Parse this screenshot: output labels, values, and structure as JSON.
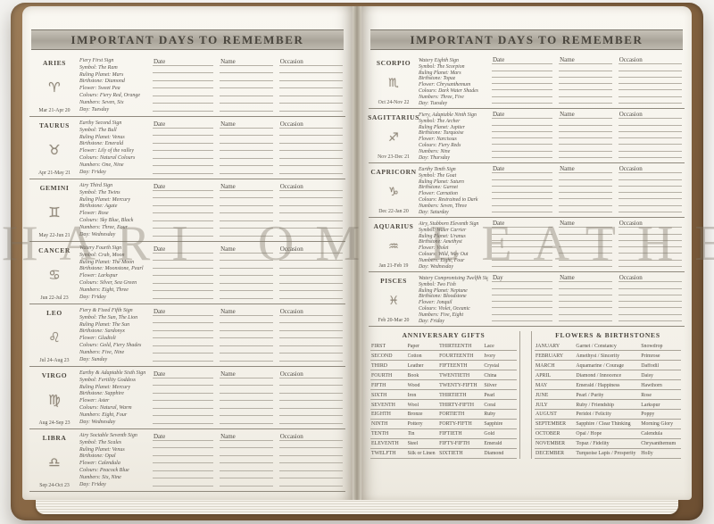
{
  "page_title": "IMPORTANT DAYS TO REMEMBER",
  "watermark": "HARI OM LEATHER",
  "columns": {
    "date": "Date",
    "name": "Name",
    "occasion": "Occasion"
  },
  "left_page": {
    "signs": [
      {
        "name": "ARIES",
        "icon": "♈",
        "dates": "Mar 21-Apr 20",
        "info": [
          "Fiery First Sign",
          "Symbol: The Ram",
          "Ruling Planet: Mars",
          "Birthstone: Diamond",
          "Flower: Sweet Pea",
          "Colours: Fiery Red, Orange",
          "Numbers: Seven, Six",
          "Day: Tuesday"
        ]
      },
      {
        "name": "TAURUS",
        "icon": "♉",
        "dates": "Apr 21-May 21",
        "info": [
          "Earthy Second Sign",
          "Symbol: The Bull",
          "Ruling Planet: Venus",
          "Birthstone: Emerald",
          "Flower: Lily of the valley",
          "Colours: Natural Colours",
          "Numbers: One, Nine",
          "Day: Friday"
        ]
      },
      {
        "name": "GEMINI",
        "icon": "♊",
        "dates": "May 22-Jun 21",
        "info": [
          "Airy Third Sign",
          "Symbol: The Twins",
          "Ruling Planet: Mercury",
          "Birthstone: Agate",
          "Flower: Rose",
          "Colours: Sky Blue, Black",
          "Numbers: Three, Four",
          "Day: Wednesday"
        ]
      },
      {
        "name": "CANCER",
        "icon": "♋",
        "dates": "Jun 22-Jul 23",
        "info": [
          "Watery Fourth Sign",
          "Symbol: Crab, Moon",
          "Ruling Planet: The Moon",
          "Birthstone: Moonstone, Pearl",
          "Flower: Larkspur",
          "Colours: Silver, Sea Green",
          "Numbers: Eight, Three",
          "Day: Friday"
        ]
      },
      {
        "name": "LEO",
        "icon": "♌",
        "dates": "Jul 24-Aug 23",
        "info": [
          "Fiery & Fixed Fifth Sign",
          "Symbol: The Sun, The Lion",
          "Ruling Planet: The Sun",
          "Birthstone: Sardonyx",
          "Flower: Gladioli",
          "Colours: Gold, Fiery Shades",
          "Numbers: Five, Nine",
          "Day: Sunday"
        ]
      },
      {
        "name": "VIRGO",
        "icon": "♍",
        "dates": "Aug 24-Sep 23",
        "info": [
          "Earthy & Adaptable Sixth Sign",
          "Symbol: Fertility Goddess",
          "Ruling Planet: Mercury",
          "Birthstone: Sapphire",
          "Flower: Aster",
          "Colours: Natural, Warm",
          "Numbers: Eight, Four",
          "Day: Wednesday"
        ]
      },
      {
        "name": "LIBRA",
        "icon": "♎",
        "dates": "Sep 24-Oct 23",
        "info": [
          "Airy Sociable Seventh Sign",
          "Symbol: The Scales",
          "Ruling Planet: Venus",
          "Birthstone: Opal",
          "Flower: Calendula",
          "Colours: Peacock Blue",
          "Numbers: Six, Nine",
          "Day: Friday"
        ]
      }
    ]
  },
  "right_page": {
    "signs": [
      {
        "name": "SCORPIO",
        "icon": "♏",
        "dates": "Oct 24-Nov 22",
        "info": [
          "Watery Eighth Sign",
          "Symbol: The Scorpion",
          "Ruling Planet: Mars",
          "Birthstone: Topaz",
          "Flower: Chrysanthemum",
          "Colours: Dark Water Shades",
          "Numbers: Three, Five",
          "Day: Tuesday"
        ]
      },
      {
        "name": "SAGITTARIUS",
        "icon": "♐",
        "dates": "Nov 23-Dec 21",
        "info": [
          "Fiery, Adaptable Ninth Sign",
          "Symbol: The Archer",
          "Ruling Planet: Jupiter",
          "Birthstone: Turquoise",
          "Flower: Narcissus",
          "Colours: Fiery Reds",
          "Numbers: Nine",
          "Day: Thursday"
        ]
      },
      {
        "name": "CAPRICORN",
        "icon": "♑",
        "dates": "Dec 22-Jan 20",
        "info": [
          "Earthy Tenth Sign",
          "Symbol: The Goat",
          "Ruling Planet: Saturn",
          "Birthstone: Garnet",
          "Flower: Carnation",
          "Colours: Restrained to Dark",
          "Numbers: Seven, Three",
          "Day: Saturday"
        ]
      },
      {
        "name": "AQUARIUS",
        "icon": "♒",
        "dates": "Jan 21-Feb 19",
        "info": [
          "Airy, Stubborn Eleventh Sign",
          "Symbol: Water Carrier",
          "Ruling Planet: Uranus",
          "Birthstone: Amethyst",
          "Flower: Violet",
          "Colours: Wild, Way Out",
          "Numbers: Eight, Four",
          "Day: Wednesday"
        ]
      },
      {
        "name": "PISCES",
        "icon": "♓",
        "dates": "Feb 20-Mar 20",
        "date_label": "Day",
        "info": [
          "Watery Compromising Twelfth Sign",
          "Symbol: Two Fish",
          "Ruling Planet: Neptune",
          "Birthstone: Bloodstone",
          "Flower: Jonquil",
          "Colours: Violet, Oceanic",
          "Numbers: Five, Eight",
          "Day: Friday"
        ]
      }
    ],
    "anniversary": {
      "title": "ANNIVERSARY GIFTS",
      "rows": [
        [
          "FIRST",
          "Paper",
          "THIRTEENTH",
          "Lace"
        ],
        [
          "SECOND",
          "Cotton",
          "FOURTEENTH",
          "Ivory"
        ],
        [
          "THIRD",
          "Leather",
          "FIFTEENTH",
          "Crystal"
        ],
        [
          "FOURTH",
          "Book",
          "TWENTIETH",
          "China"
        ],
        [
          "FIFTH",
          "Wood",
          "TWENTY-FIFTH",
          "Silver"
        ],
        [
          "SIXTH",
          "Iron",
          "THIRTIETH",
          "Pearl"
        ],
        [
          "SEVENTH",
          "Wool",
          "THIRTY-FIFTH",
          "Coral"
        ],
        [
          "EIGHTH",
          "Bronze",
          "FORTIETH",
          "Ruby"
        ],
        [
          "NINTH",
          "Pottery",
          "FORTY-FIFTH",
          "Sapphire"
        ],
        [
          "TENTH",
          "Tin",
          "FIFTIETH",
          "Gold"
        ],
        [
          "ELEVENTH",
          "Steel",
          "FIFTY-FIFTH",
          "Emerald"
        ],
        [
          "TWELFTH",
          "Silk or Linen",
          "SIXTIETH",
          "Diamond"
        ]
      ]
    },
    "flowers": {
      "title": "FLOWERS & BIRTHSTONES",
      "rows": [
        [
          "JANUARY",
          "Garnet / Constancy",
          "Snowdrop"
        ],
        [
          "FEBRUARY",
          "Amethyst / Sincerity",
          "Primrose"
        ],
        [
          "MARCH",
          "Aquamarine / Courage",
          "Daffodil"
        ],
        [
          "APRIL",
          "Diamond / Innocence",
          "Daisy"
        ],
        [
          "MAY",
          "Emerald / Happiness",
          "Hawthorn"
        ],
        [
          "JUNE",
          "Pearl / Purity",
          "Rose"
        ],
        [
          "JULY",
          "Ruby / Friendship",
          "Larkspur"
        ],
        [
          "AUGUST",
          "Peridot / Felicity",
          "Poppy"
        ],
        [
          "SEPTEMBER",
          "Sapphire / Clear Thinking",
          "Morning Glory"
        ],
        [
          "OCTOBER",
          "Opal / Hope",
          "Calendula"
        ],
        [
          "NOVEMBER",
          "Topaz / Fidelity",
          "Chrysanthemum"
        ],
        [
          "DECEMBER",
          "Turquoise Lapis / Prosperity",
          "Holly"
        ]
      ]
    }
  }
}
